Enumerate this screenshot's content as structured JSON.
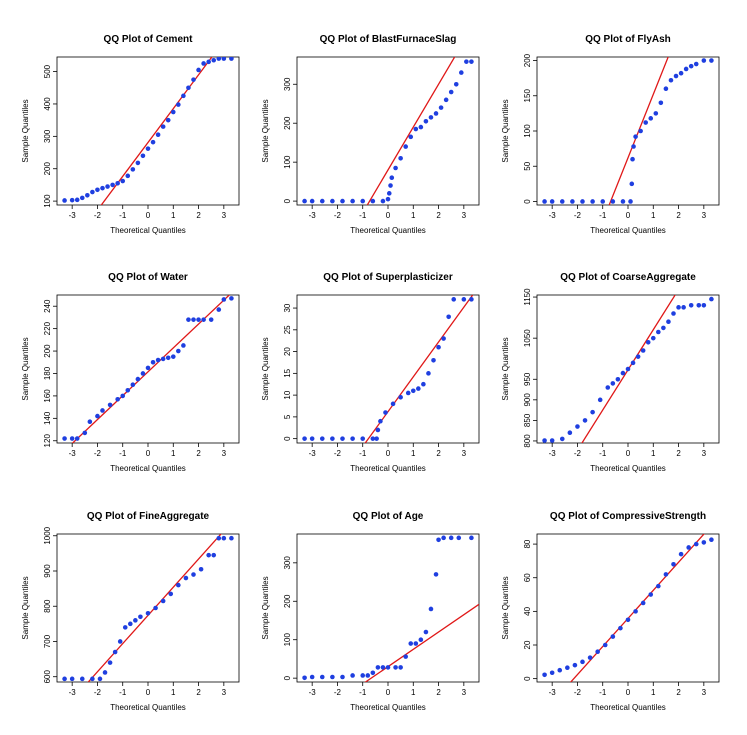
{
  "chart_data": [
    {
      "type": "scatter",
      "title": "QQ Plot of Cement",
      "xlabel": "Theoretical Quantiles",
      "ylabel": "Sample Quantiles",
      "xlim": [
        -3.6,
        3.6
      ],
      "ylim": [
        88,
        545
      ],
      "xticks": [
        -3,
        -2,
        -1,
        0,
        1,
        2,
        3
      ],
      "yticks": [
        100,
        200,
        300,
        400,
        500
      ],
      "line": {
        "slope": 104.5,
        "intercept": 281
      },
      "points": [
        [
          -3.3,
          102
        ],
        [
          -3.0,
          103
        ],
        [
          -2.8,
          104
        ],
        [
          -2.6,
          110
        ],
        [
          -2.4,
          118
        ],
        [
          -2.2,
          128
        ],
        [
          -2.0,
          135
        ],
        [
          -1.8,
          140
        ],
        [
          -1.6,
          145
        ],
        [
          -1.4,
          150
        ],
        [
          -1.2,
          155
        ],
        [
          -1.0,
          162
        ],
        [
          -0.8,
          178
        ],
        [
          -0.6,
          198
        ],
        [
          -0.4,
          218
        ],
        [
          -0.2,
          240
        ],
        [
          0.0,
          262
        ],
        [
          0.2,
          282
        ],
        [
          0.4,
          305
        ],
        [
          0.6,
          330
        ],
        [
          0.8,
          350
        ],
        [
          1.0,
          375
        ],
        [
          1.2,
          398
        ],
        [
          1.4,
          425
        ],
        [
          1.6,
          450
        ],
        [
          1.8,
          475
        ],
        [
          2.0,
          505
        ],
        [
          2.2,
          525
        ],
        [
          2.4,
          530
        ],
        [
          2.6,
          535
        ],
        [
          2.8,
          540
        ],
        [
          3.0,
          540
        ],
        [
          3.3,
          540
        ]
      ]
    },
    {
      "type": "scatter",
      "title": "QQ Plot of BlastFurnaceSlag",
      "xlabel": "Theoretical Quantiles",
      "ylabel": "Sample Quantiles",
      "xlim": [
        -3.6,
        3.6
      ],
      "ylim": [
        -10,
        370
      ],
      "xticks": [
        -3,
        -2,
        -1,
        0,
        1,
        2,
        3
      ],
      "yticks": [
        0,
        100,
        200,
        300
      ],
      "line": {
        "slope": 110,
        "intercept": 80
      },
      "points": [
        [
          -3.3,
          0
        ],
        [
          -3.0,
          0
        ],
        [
          -2.6,
          0
        ],
        [
          -2.2,
          0
        ],
        [
          -1.8,
          0
        ],
        [
          -1.4,
          0
        ],
        [
          -1.0,
          0
        ],
        [
          -0.6,
          0
        ],
        [
          -0.2,
          0
        ],
        [
          0.0,
          5
        ],
        [
          0.05,
          20
        ],
        [
          0.1,
          40
        ],
        [
          0.15,
          60
        ],
        [
          0.3,
          85
        ],
        [
          0.5,
          110
        ],
        [
          0.7,
          140
        ],
        [
          0.9,
          165
        ],
        [
          1.1,
          185
        ],
        [
          1.3,
          190
        ],
        [
          1.5,
          205
        ],
        [
          1.7,
          215
        ],
        [
          1.9,
          225
        ],
        [
          2.1,
          240
        ],
        [
          2.3,
          260
        ],
        [
          2.5,
          280
        ],
        [
          2.7,
          300
        ],
        [
          2.9,
          330
        ],
        [
          3.1,
          358
        ],
        [
          3.3,
          358
        ]
      ]
    },
    {
      "type": "scatter",
      "title": "QQ Plot of FlyAsh",
      "xlabel": "Theoretical Quantiles",
      "ylabel": "Sample Quantiles",
      "xlim": [
        -3.6,
        3.6
      ],
      "ylim": [
        -5,
        205
      ],
      "xticks": [
        -3,
        -2,
        -1,
        0,
        1,
        2,
        3
      ],
      "yticks": [
        0,
        50,
        100,
        150,
        200
      ],
      "line": {
        "slope": 90,
        "intercept": 62
      },
      "points": [
        [
          -3.3,
          0
        ],
        [
          -3.0,
          0
        ],
        [
          -2.6,
          0
        ],
        [
          -2.2,
          0
        ],
        [
          -1.8,
          0
        ],
        [
          -1.4,
          0
        ],
        [
          -1.0,
          0
        ],
        [
          -0.6,
          0
        ],
        [
          -0.2,
          0
        ],
        [
          0.1,
          0
        ],
        [
          0.15,
          25
        ],
        [
          0.18,
          60
        ],
        [
          0.22,
          78
        ],
        [
          0.3,
          92
        ],
        [
          0.5,
          100
        ],
        [
          0.7,
          112
        ],
        [
          0.9,
          118
        ],
        [
          1.1,
          125
        ],
        [
          1.3,
          140
        ],
        [
          1.5,
          160
        ],
        [
          1.7,
          172
        ],
        [
          1.9,
          178
        ],
        [
          2.1,
          182
        ],
        [
          2.3,
          188
        ],
        [
          2.5,
          192
        ],
        [
          2.7,
          195
        ],
        [
          3.0,
          200
        ],
        [
          3.3,
          200
        ]
      ]
    },
    {
      "type": "scatter",
      "title": "QQ Plot of Water",
      "xlabel": "Theoretical Quantiles",
      "ylabel": "Sample Quantiles",
      "xlim": [
        -3.6,
        3.6
      ],
      "ylim": [
        118,
        250
      ],
      "xticks": [
        -3,
        -2,
        -1,
        0,
        1,
        2,
        3
      ],
      "yticks": [
        120,
        140,
        160,
        180,
        200,
        220,
        240
      ],
      "line": {
        "slope": 21.3,
        "intercept": 181.5
      },
      "points": [
        [
          -3.3,
          122
        ],
        [
          -3.0,
          122
        ],
        [
          -2.8,
          122
        ],
        [
          -2.5,
          127
        ],
        [
          -2.3,
          137
        ],
        [
          -2.0,
          142
        ],
        [
          -1.8,
          147
        ],
        [
          -1.5,
          152
        ],
        [
          -1.2,
          157
        ],
        [
          -1.0,
          160
        ],
        [
          -0.8,
          165
        ],
        [
          -0.6,
          170
        ],
        [
          -0.4,
          175
        ],
        [
          -0.2,
          180
        ],
        [
          0.0,
          185
        ],
        [
          0.2,
          190
        ],
        [
          0.4,
          192
        ],
        [
          0.6,
          193
        ],
        [
          0.8,
          194
        ],
        [
          1.0,
          195
        ],
        [
          1.2,
          200
        ],
        [
          1.4,
          205
        ],
        [
          1.6,
          228
        ],
        [
          1.8,
          228
        ],
        [
          2.0,
          228
        ],
        [
          2.2,
          228
        ],
        [
          2.5,
          228
        ],
        [
          2.8,
          237
        ],
        [
          3.0,
          246
        ],
        [
          3.3,
          247
        ]
      ]
    },
    {
      "type": "scatter",
      "title": "QQ Plot of Superplasticizer",
      "xlabel": "Theoretical Quantiles",
      "ylabel": "Sample Quantiles",
      "xlim": [
        -3.6,
        3.6
      ],
      "ylim": [
        -1,
        33
      ],
      "xticks": [
        -3,
        -2,
        -1,
        0,
        1,
        2,
        3
      ],
      "yticks": [
        0,
        5,
        10,
        15,
        20,
        25,
        30
      ],
      "line": {
        "slope": 8,
        "intercept": 6.2
      },
      "points": [
        [
          -3.3,
          0
        ],
        [
          -3.0,
          0
        ],
        [
          -2.6,
          0
        ],
        [
          -2.2,
          0
        ],
        [
          -1.8,
          0
        ],
        [
          -1.4,
          0
        ],
        [
          -1.0,
          0
        ],
        [
          -0.6,
          0
        ],
        [
          -0.45,
          0
        ],
        [
          -0.4,
          2
        ],
        [
          -0.3,
          4
        ],
        [
          -0.1,
          6
        ],
        [
          0.2,
          8
        ],
        [
          0.5,
          9.5
        ],
        [
          0.8,
          10.5
        ],
        [
          1.0,
          11
        ],
        [
          1.2,
          11.5
        ],
        [
          1.4,
          12.5
        ],
        [
          1.6,
          15
        ],
        [
          1.8,
          18
        ],
        [
          2.0,
          21
        ],
        [
          2.2,
          23
        ],
        [
          2.4,
          28
        ],
        [
          2.6,
          32
        ],
        [
          3.0,
          32
        ],
        [
          3.3,
          32
        ]
      ]
    },
    {
      "type": "scatter",
      "title": "QQ Plot of CoarseAggregate",
      "xlabel": "Theoretical Quantiles",
      "ylabel": "Sample Quantiles",
      "xlim": [
        -3.6,
        3.6
      ],
      "ylim": [
        795,
        1155
      ],
      "xticks": [
        -3,
        -2,
        -1,
        0,
        1,
        2,
        3
      ],
      "yticks": [
        800,
        850,
        900,
        950,
        1050,
        1150
      ],
      "tick_labels": [
        "800",
        "850",
        "900",
        "950",
        "1050",
        "1150"
      ],
      "line": {
        "slope": 97.7,
        "intercept": 972.9
      },
      "points": [
        [
          -3.3,
          801
        ],
        [
          -3.0,
          801
        ],
        [
          -2.6,
          805
        ],
        [
          -2.3,
          820
        ],
        [
          -2.0,
          835
        ],
        [
          -1.7,
          850
        ],
        [
          -1.4,
          870
        ],
        [
          -1.1,
          900
        ],
        [
          -0.8,
          930
        ],
        [
          -0.6,
          940
        ],
        [
          -0.4,
          950
        ],
        [
          -0.2,
          965
        ],
        [
          0.0,
          975
        ],
        [
          0.2,
          990
        ],
        [
          0.4,
          1005
        ],
        [
          0.6,
          1020
        ],
        [
          0.8,
          1040
        ],
        [
          1.0,
          1050
        ],
        [
          1.2,
          1065
        ],
        [
          1.4,
          1075
        ],
        [
          1.6,
          1090
        ],
        [
          1.8,
          1110
        ],
        [
          2.0,
          1125
        ],
        [
          2.2,
          1125
        ],
        [
          2.5,
          1130
        ],
        [
          2.8,
          1130
        ],
        [
          3.0,
          1130
        ],
        [
          3.3,
          1145
        ]
      ]
    },
    {
      "type": "scatter",
      "title": "QQ Plot of FineAggregate",
      "xlabel": "Theoretical Quantiles",
      "ylabel": "Sample Quantiles",
      "xlim": [
        -3.6,
        3.6
      ],
      "ylim": [
        585,
        1005
      ],
      "xticks": [
        -3,
        -2,
        -1,
        0,
        1,
        2,
        3
      ],
      "yticks": [
        600,
        700,
        800,
        900,
        1000
      ],
      "line": {
        "slope": 80,
        "intercept": 774
      },
      "points": [
        [
          -3.3,
          594
        ],
        [
          -3.0,
          594
        ],
        [
          -2.6,
          594
        ],
        [
          -2.2,
          594
        ],
        [
          -1.9,
          594
        ],
        [
          -1.7,
          612
        ],
        [
          -1.5,
          640
        ],
        [
          -1.3,
          670
        ],
        [
          -1.1,
          700
        ],
        [
          -0.9,
          740
        ],
        [
          -0.7,
          750
        ],
        [
          -0.5,
          760
        ],
        [
          -0.3,
          770
        ],
        [
          0.0,
          780
        ],
        [
          0.3,
          795
        ],
        [
          0.6,
          815
        ],
        [
          0.9,
          835
        ],
        [
          1.2,
          860
        ],
        [
          1.5,
          880
        ],
        [
          1.8,
          890
        ],
        [
          2.1,
          905
        ],
        [
          2.4,
          945
        ],
        [
          2.6,
          945
        ],
        [
          2.8,
          993
        ],
        [
          3.0,
          993
        ],
        [
          3.3,
          993
        ]
      ]
    },
    {
      "type": "scatter",
      "title": "QQ Plot of Age",
      "xlabel": "Theoretical Quantiles",
      "ylabel": "Sample Quantiles",
      "xlim": [
        -3.6,
        3.6
      ],
      "ylim": [
        -10,
        375
      ],
      "xticks": [
        -3,
        -2,
        -1,
        0,
        1,
        2,
        3
      ],
      "yticks": [
        0,
        100,
        200,
        300
      ],
      "line": {
        "slope": 45,
        "intercept": 30
      },
      "points": [
        [
          -3.3,
          1
        ],
        [
          -3.0,
          3
        ],
        [
          -2.6,
          3
        ],
        [
          -2.2,
          3
        ],
        [
          -1.8,
          3
        ],
        [
          -1.4,
          7
        ],
        [
          -1.0,
          7
        ],
        [
          -0.8,
          7
        ],
        [
          -0.6,
          14
        ],
        [
          -0.4,
          28
        ],
        [
          -0.2,
          28
        ],
        [
          0.0,
          28
        ],
        [
          0.3,
          28
        ],
        [
          0.5,
          28
        ],
        [
          0.7,
          56
        ],
        [
          0.9,
          90
        ],
        [
          1.1,
          90
        ],
        [
          1.3,
          100
        ],
        [
          1.5,
          120
        ],
        [
          1.7,
          180
        ],
        [
          1.9,
          270
        ],
        [
          2.0,
          360
        ],
        [
          2.2,
          365
        ],
        [
          2.5,
          365
        ],
        [
          2.8,
          365
        ],
        [
          3.3,
          365
        ]
      ]
    },
    {
      "type": "scatter",
      "title": "QQ Plot of CompressiveStrength",
      "xlabel": "Theoretical Quantiles",
      "ylabel": "Sample Quantiles",
      "xlim": [
        -3.6,
        3.6
      ],
      "ylim": [
        -2,
        86
      ],
      "xticks": [
        -3,
        -2,
        -1,
        0,
        1,
        2,
        3
      ],
      "yticks": [
        0,
        20,
        40,
        60,
        80
      ],
      "line": {
        "slope": 16.7,
        "intercept": 35.8
      },
      "points": [
        [
          -3.3,
          2.3
        ],
        [
          -3.0,
          3.5
        ],
        [
          -2.7,
          5
        ],
        [
          -2.4,
          6.5
        ],
        [
          -2.1,
          8
        ],
        [
          -1.8,
          10
        ],
        [
          -1.5,
          12.5
        ],
        [
          -1.2,
          16
        ],
        [
          -0.9,
          20
        ],
        [
          -0.6,
          25
        ],
        [
          -0.3,
          30
        ],
        [
          0.0,
          35
        ],
        [
          0.3,
          40
        ],
        [
          0.6,
          45
        ],
        [
          0.9,
          50
        ],
        [
          1.2,
          55
        ],
        [
          1.5,
          62
        ],
        [
          1.8,
          68
        ],
        [
          2.1,
          74
        ],
        [
          2.4,
          78
        ],
        [
          2.7,
          80
        ],
        [
          3.0,
          81
        ],
        [
          3.3,
          82.6
        ]
      ]
    }
  ]
}
